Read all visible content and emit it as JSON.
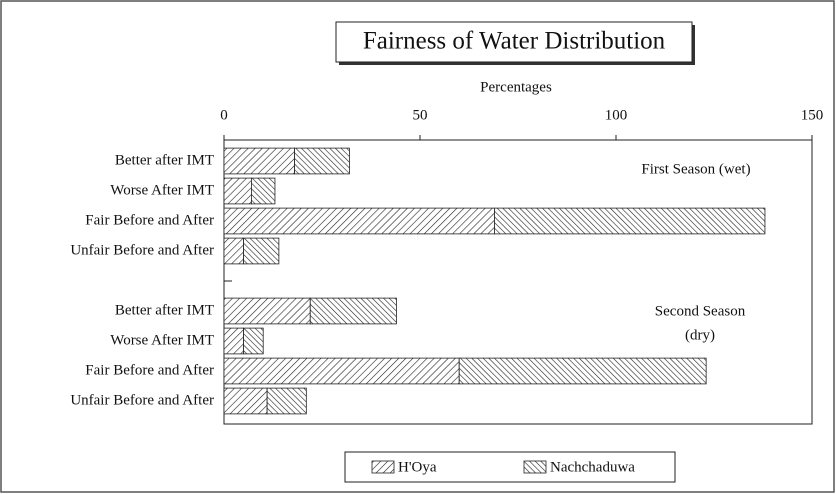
{
  "chart_data": {
    "type": "stacked-bar-horizontal",
    "title": "Fairness of Water Distribution",
    "x_label": "Percentages",
    "categories": [
      "Better after IMT",
      "Worse After IMT",
      "Fair Before and After",
      "Unfair Before and After",
      null,
      "Better after IMT",
      "Worse After IMT",
      "Fair Before and After",
      "Unfair Before and After"
    ],
    "series": [
      {
        "name": "H'Oya",
        "color": "#222222",
        "hatch": "forward",
        "values": [
          18,
          7,
          69,
          5,
          null,
          22,
          5,
          60,
          11
        ]
      },
      {
        "name": "Nachchaduwa",
        "color": "#222222",
        "hatch": "backward",
        "values": [
          14,
          6,
          69,
          9,
          null,
          22,
          5,
          63,
          10
        ]
      }
    ],
    "xlim": [
      0,
      150
    ],
    "xticks": [
      0,
      50,
      100,
      150
    ],
    "annotations": [
      "First Season (wet)",
      "Second Season",
      "(dry)"
    ],
    "legend": "bottom"
  }
}
